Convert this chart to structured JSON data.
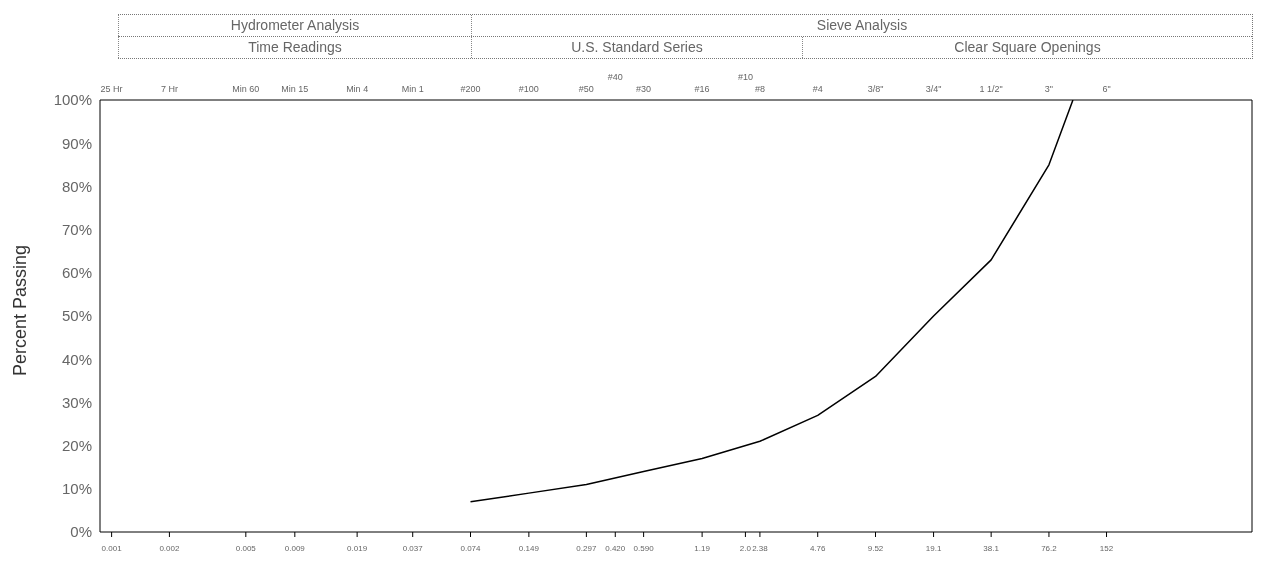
{
  "chart_data": {
    "type": "line",
    "ylabel": "Percent Passing",
    "annotations": [
      "Hydrometer Analysis",
      "Sieve Analysis",
      "Time Readings",
      "U.S. Standard Series",
      "Clear Square Openings",
      "25 Hr",
      "7 Hr",
      "Min 60",
      "Min 15",
      "Min 4",
      "Min 1",
      "#200",
      "#100",
      "#50",
      "#40",
      "#30",
      "#16",
      "#10",
      "#8",
      "#4",
      "3/8\"",
      "3/4\"",
      "1 1/2\"",
      "3\"",
      "6\""
    ],
    "x": [
      0.074,
      0.149,
      0.297,
      0.59,
      1.19,
      2.38,
      4.76,
      9.52,
      19.1,
      38.1,
      76.2,
      101.6
    ],
    "series": [
      {
        "color": "#000000",
        "values": [
          7,
          9,
          11,
          14,
          17,
          21,
          27,
          36,
          50,
          63,
          85,
          100
        ]
      }
    ],
    "xlim": [
      0.00087,
      870
    ],
    "log": "x",
    "grid": false,
    "xticks": [
      0.001,
      0.002,
      0.005,
      0.009,
      0.019,
      0.037,
      0.074,
      0.149,
      0.297,
      {
        "value": 0.42,
        "label": "0.420"
      },
      {
        "value": 0.59,
        "label": "0.590"
      },
      1.19,
      {
        "value": 2,
        "label": "2.0"
      },
      2.38,
      4.76,
      9.52,
      19.1,
      38.1,
      76.2,
      152
    ],
    "ylim": [
      0,
      100
    ],
    "yticks": [
      {
        "value": 0,
        "label": "0%"
      },
      {
        "value": 10,
        "label": "10%"
      },
      {
        "value": 20,
        "label": "20%"
      },
      {
        "value": 30,
        "label": "30%"
      },
      {
        "value": 40,
        "label": "40%"
      },
      {
        "value": 50,
        "label": "50%"
      },
      {
        "value": 60,
        "label": "60%"
      },
      {
        "value": 70,
        "label": "70%"
      },
      {
        "value": 80,
        "label": "80%"
      },
      {
        "value": 90,
        "label": "90%"
      },
      {
        "value": 100,
        "label": "100%"
      }
    ]
  }
}
